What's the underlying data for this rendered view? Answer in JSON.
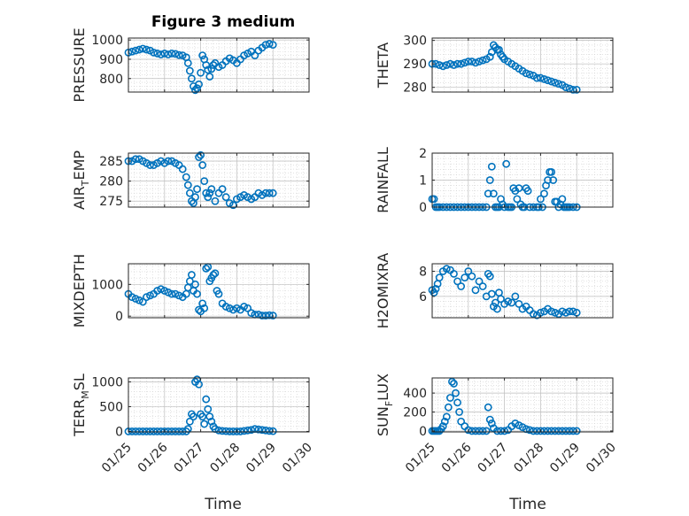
{
  "figure": {
    "title": "Figure 3 medium",
    "xlabel": "Time",
    "x_tick_labels": [
      "01/25",
      "01/26",
      "01/27",
      "01/28",
      "01/29",
      "01/30"
    ],
    "marker_color": "#0072BD"
  },
  "panels": [
    {
      "key": "pressure",
      "ylabel_main": "PRESSURE",
      "ylabel_sub": "",
      "ylabel_tail": "",
      "yticks": [
        {
          "value": 800,
          "label": "800"
        },
        {
          "value": 900,
          "label": "900"
        },
        {
          "value": 1000,
          "label": "1000"
        }
      ]
    },
    {
      "key": "theta",
      "ylabel_main": "THETA",
      "ylabel_sub": "",
      "ylabel_tail": "",
      "yticks": [
        {
          "value": 280,
          "label": "280"
        },
        {
          "value": 290,
          "label": "290"
        },
        {
          "value": 300,
          "label": "300"
        }
      ]
    },
    {
      "key": "air_temp",
      "ylabel_main": "AIR",
      "ylabel_sub": "T",
      "ylabel_tail": "EMP",
      "yticks": [
        {
          "value": 275,
          "label": "275"
        },
        {
          "value": 280,
          "label": "280"
        },
        {
          "value": 285,
          "label": "285"
        }
      ]
    },
    {
      "key": "rainfall",
      "ylabel_main": "RAINFALL",
      "ylabel_sub": "",
      "ylabel_tail": "",
      "yticks": [
        {
          "value": 0,
          "label": "0"
        },
        {
          "value": 1,
          "label": "1"
        },
        {
          "value": 2,
          "label": "2"
        }
      ]
    },
    {
      "key": "mixdepth",
      "ylabel_main": "MIXDEPTH",
      "ylabel_sub": "",
      "ylabel_tail": "",
      "yticks": [
        {
          "value": 0,
          "label": "0"
        },
        {
          "value": 1000,
          "label": "1000"
        }
      ]
    },
    {
      "key": "h2omixra",
      "ylabel_main": "H2OMIXRA",
      "ylabel_sub": "",
      "ylabel_tail": "",
      "yticks": [
        {
          "value": 6,
          "label": "6"
        },
        {
          "value": 8,
          "label": "8"
        }
      ]
    },
    {
      "key": "terr_msl",
      "ylabel_main": "TERR",
      "ylabel_sub": "M",
      "ylabel_tail": "SL",
      "yticks": [
        {
          "value": 0,
          "label": "0"
        },
        {
          "value": 500,
          "label": "500"
        },
        {
          "value": 1000,
          "label": "1000"
        }
      ]
    },
    {
      "key": "sun_flux",
      "ylabel_main": "SUN",
      "ylabel_sub": "F",
      "ylabel_tail": "LUX",
      "yticks": [
        {
          "value": 0,
          "label": "0"
        },
        {
          "value": 200,
          "label": "200"
        },
        {
          "value": 400,
          "label": "400"
        }
      ]
    }
  ],
  "chart_data": [
    {
      "type": "scatter",
      "title": "Figure 3 medium",
      "xlabel": "",
      "ylabel": "PRESSURE",
      "xlim": [
        0,
        5
      ],
      "ylim": [
        730,
        1010
      ],
      "grid": true,
      "minor_grid": true,
      "x": [
        0.0,
        0.1,
        0.2,
        0.3,
        0.4,
        0.5,
        0.6,
        0.7,
        0.8,
        0.9,
        1.0,
        1.1,
        1.2,
        1.3,
        1.4,
        1.5,
        1.6,
        1.65,
        1.7,
        1.75,
        1.8,
        1.85,
        1.9,
        1.95,
        2.0,
        2.05,
        2.1,
        2.15,
        2.2,
        2.25,
        2.3,
        2.35,
        2.4,
        2.5,
        2.6,
        2.7,
        2.8,
        2.9,
        3.0,
        3.1,
        3.2,
        3.3,
        3.4,
        3.5,
        3.6,
        3.7,
        3.8,
        3.9,
        4.0
      ],
      "y": [
        935,
        940,
        945,
        950,
        955,
        950,
        945,
        935,
        930,
        925,
        930,
        925,
        930,
        928,
        922,
        920,
        910,
        880,
        840,
        800,
        760,
        740,
        750,
        770,
        830,
        920,
        900,
        870,
        845,
        810,
        850,
        870,
        880,
        860,
        870,
        890,
        905,
        895,
        880,
        900,
        920,
        930,
        940,
        920,
        945,
        960,
        975,
        980,
        975
      ]
    },
    {
      "type": "scatter",
      "title": "",
      "xlabel": "",
      "ylabel": "THETA",
      "xlim": [
        0,
        5
      ],
      "ylim": [
        278,
        301
      ],
      "grid": true,
      "minor_grid": true,
      "x": [
        0.0,
        0.1,
        0.2,
        0.3,
        0.4,
        0.5,
        0.6,
        0.7,
        0.8,
        0.9,
        1.0,
        1.1,
        1.2,
        1.3,
        1.4,
        1.5,
        1.6,
        1.65,
        1.7,
        1.75,
        1.8,
        1.85,
        1.9,
        1.95,
        2.0,
        2.1,
        2.2,
        2.3,
        2.4,
        2.5,
        2.6,
        2.7,
        2.8,
        2.9,
        3.0,
        3.1,
        3.2,
        3.3,
        3.4,
        3.5,
        3.6,
        3.7,
        3.8,
        3.9,
        4.0
      ],
      "y": [
        290,
        290,
        289.5,
        289,
        289.5,
        290,
        289.5,
        290,
        290,
        290.5,
        291,
        291,
        290.5,
        291,
        291.5,
        292,
        293,
        295,
        298,
        297,
        296,
        296,
        294,
        293,
        292,
        291,
        290,
        289,
        288,
        287,
        286,
        285.5,
        285,
        284,
        284,
        283.5,
        283,
        282.5,
        282,
        281.5,
        281,
        280,
        279.5,
        279,
        279
      ]
    },
    {
      "type": "scatter",
      "title": "",
      "xlabel": "",
      "ylabel": "AIR_TEMP",
      "xlim": [
        0,
        5
      ],
      "ylim": [
        273.5,
        287
      ],
      "grid": true,
      "minor_grid": true,
      "x": [
        0.0,
        0.1,
        0.2,
        0.3,
        0.4,
        0.5,
        0.6,
        0.7,
        0.8,
        0.9,
        1.0,
        1.1,
        1.2,
        1.3,
        1.4,
        1.5,
        1.6,
        1.65,
        1.7,
        1.75,
        1.8,
        1.85,
        1.9,
        1.95,
        2.0,
        2.05,
        2.1,
        2.15,
        2.2,
        2.25,
        2.3,
        2.4,
        2.5,
        2.6,
        2.7,
        2.8,
        2.9,
        3.0,
        3.1,
        3.2,
        3.3,
        3.4,
        3.5,
        3.6,
        3.7,
        3.8,
        3.9,
        4.0
      ],
      "y": [
        285,
        285,
        285.5,
        285.5,
        285,
        284.5,
        284,
        284,
        284.5,
        285,
        284.5,
        285,
        285,
        284.5,
        284,
        283,
        281,
        279,
        277,
        275,
        274.5,
        276,
        278,
        286,
        286.5,
        284,
        280,
        277,
        276,
        277,
        278,
        275,
        277,
        278,
        276,
        274.5,
        274,
        275.5,
        276,
        276.5,
        276,
        275.5,
        276,
        277,
        276.5,
        277,
        277,
        277
      ]
    },
    {
      "type": "scatter",
      "title": "",
      "xlabel": "",
      "ylabel": "RAINFALL",
      "xlim": [
        0,
        5
      ],
      "ylim": [
        0,
        2
      ],
      "grid": true,
      "minor_grid": true,
      "x": [
        0.0,
        0.05,
        0.1,
        0.15,
        0.2,
        0.3,
        0.4,
        0.5,
        0.6,
        0.7,
        0.8,
        0.9,
        1.0,
        1.1,
        1.2,
        1.3,
        1.4,
        1.5,
        1.55,
        1.6,
        1.65,
        1.7,
        1.75,
        1.8,
        1.85,
        1.9,
        1.95,
        2.0,
        2.05,
        2.1,
        2.15,
        2.2,
        2.25,
        2.3,
        2.35,
        2.4,
        2.45,
        2.5,
        2.55,
        2.6,
        2.65,
        2.7,
        2.8,
        2.9,
        2.95,
        3.0,
        3.05,
        3.1,
        3.15,
        3.2,
        3.25,
        3.3,
        3.35,
        3.4,
        3.45,
        3.5,
        3.55,
        3.6,
        3.65,
        3.7,
        3.75,
        3.8,
        3.9,
        4.0
      ],
      "y": [
        0.3,
        0.3,
        0,
        0,
        0,
        0,
        0,
        0,
        0,
        0,
        0,
        0,
        0,
        0,
        0,
        0,
        0,
        0,
        0.5,
        1.0,
        1.5,
        0.5,
        0,
        0,
        0,
        0.3,
        0.1,
        0,
        1.6,
        0,
        0,
        0,
        0.7,
        0.6,
        0.3,
        0.7,
        0.1,
        0,
        0,
        0.7,
        0.6,
        0,
        0,
        0,
        0,
        0.3,
        0,
        0.5,
        0.8,
        1.0,
        1.3,
        1.3,
        1.0,
        0.2,
        0.2,
        0,
        0.1,
        0.3,
        0,
        0,
        0,
        0,
        0,
        0
      ]
    },
    {
      "type": "scatter",
      "title": "",
      "xlabel": "",
      "ylabel": "MIXDEPTH",
      "xlim": [
        0,
        5
      ],
      "ylim": [
        -50,
        1650
      ],
      "grid": true,
      "minor_grid": true,
      "x": [
        0.0,
        0.1,
        0.2,
        0.3,
        0.4,
        0.5,
        0.6,
        0.7,
        0.8,
        0.9,
        1.0,
        1.1,
        1.2,
        1.3,
        1.4,
        1.5,
        1.6,
        1.65,
        1.7,
        1.75,
        1.8,
        1.85,
        1.9,
        1.95,
        2.0,
        2.05,
        2.1,
        2.15,
        2.2,
        2.25,
        2.3,
        2.35,
        2.4,
        2.45,
        2.5,
        2.6,
        2.7,
        2.8,
        2.9,
        3.0,
        3.1,
        3.2,
        3.3,
        3.4,
        3.5,
        3.6,
        3.7,
        3.8,
        3.9,
        4.0
      ],
      "y": [
        700,
        600,
        550,
        500,
        450,
        600,
        650,
        700,
        800,
        850,
        800,
        750,
        700,
        700,
        650,
        600,
        700,
        900,
        1100,
        1300,
        800,
        1000,
        700,
        200,
        150,
        400,
        250,
        1500,
        1550,
        1100,
        1200,
        1300,
        1350,
        800,
        700,
        400,
        300,
        250,
        200,
        250,
        200,
        300,
        250,
        100,
        50,
        50,
        20,
        20,
        30,
        20
      ]
    },
    {
      "type": "scatter",
      "title": "",
      "xlabel": "",
      "ylabel": "H2OMIXRA",
      "xlim": [
        0,
        5
      ],
      "ylim": [
        4.3,
        8.6
      ],
      "grid": true,
      "minor_grid": true,
      "x": [
        0.0,
        0.05,
        0.1,
        0.15,
        0.2,
        0.3,
        0.4,
        0.5,
        0.6,
        0.7,
        0.8,
        0.9,
        1.0,
        1.1,
        1.2,
        1.3,
        1.4,
        1.5,
        1.55,
        1.6,
        1.65,
        1.7,
        1.75,
        1.8,
        1.85,
        1.9,
        2.0,
        2.1,
        2.2,
        2.3,
        2.4,
        2.5,
        2.6,
        2.7,
        2.8,
        2.9,
        3.0,
        3.1,
        3.2,
        3.3,
        3.4,
        3.5,
        3.6,
        3.7,
        3.8,
        3.9,
        4.0
      ],
      "y": [
        6.5,
        6.3,
        6.6,
        7.0,
        7.5,
        8.0,
        8.2,
        8.1,
        7.8,
        7.2,
        6.8,
        7.5,
        8.0,
        7.6,
        6.5,
        7.2,
        6.8,
        6.0,
        7.8,
        7.6,
        6.2,
        5.2,
        5.5,
        5.0,
        6.3,
        5.8,
        5.4,
        5.6,
        5.5,
        6.0,
        5.4,
        5.0,
        5.2,
        4.9,
        4.6,
        4.5,
        4.7,
        4.8,
        5.0,
        4.8,
        4.7,
        4.6,
        4.8,
        4.7,
        4.8,
        4.8,
        4.7
      ]
    },
    {
      "type": "scatter",
      "title": "",
      "xlabel": "",
      "ylabel": "TERR_MSL",
      "xlim": [
        0,
        5
      ],
      "ylim": [
        -10,
        1080
      ],
      "grid": true,
      "minor_grid": true,
      "x": [
        0.0,
        0.1,
        0.2,
        0.3,
        0.4,
        0.5,
        0.6,
        0.7,
        0.8,
        0.9,
        1.0,
        1.1,
        1.2,
        1.3,
        1.4,
        1.5,
        1.6,
        1.65,
        1.7,
        1.75,
        1.8,
        1.85,
        1.9,
        1.95,
        2.0,
        2.05,
        2.1,
        2.15,
        2.2,
        2.25,
        2.3,
        2.35,
        2.4,
        2.5,
        2.6,
        2.7,
        2.8,
        2.9,
        3.0,
        3.1,
        3.2,
        3.3,
        3.4,
        3.5,
        3.6,
        3.7,
        3.8,
        3.9,
        4.0
      ],
      "y": [
        0,
        0,
        0,
        0,
        0,
        0,
        0,
        0,
        0,
        0,
        0,
        0,
        0,
        0,
        0,
        0,
        0,
        50,
        200,
        350,
        300,
        1000,
        1050,
        950,
        350,
        300,
        150,
        650,
        450,
        300,
        200,
        100,
        50,
        20,
        10,
        5,
        0,
        0,
        0,
        0,
        10,
        20,
        30,
        50,
        40,
        30,
        20,
        10,
        5
      ]
    },
    {
      "type": "scatter",
      "title": "",
      "xlabel": "",
      "ylabel": "SUN_FLUX",
      "xlim": [
        0,
        5
      ],
      "ylim": [
        -10,
        560
      ],
      "grid": true,
      "minor_grid": true,
      "x": [
        0.0,
        0.05,
        0.1,
        0.15,
        0.2,
        0.25,
        0.3,
        0.35,
        0.4,
        0.45,
        0.5,
        0.55,
        0.6,
        0.65,
        0.7,
        0.75,
        0.8,
        0.9,
        1.0,
        1.1,
        1.2,
        1.3,
        1.4,
        1.5,
        1.55,
        1.6,
        1.65,
        1.7,
        1.8,
        1.9,
        2.0,
        2.1,
        2.2,
        2.3,
        2.4,
        2.5,
        2.6,
        2.7,
        2.8,
        2.9,
        3.0,
        3.1,
        3.2,
        3.3,
        3.4,
        3.5,
        3.6,
        3.7,
        3.8,
        3.9,
        4.0
      ],
      "y": [
        0,
        0,
        0,
        0,
        0,
        20,
        50,
        100,
        150,
        250,
        350,
        520,
        500,
        400,
        300,
        200,
        100,
        50,
        10,
        0,
        0,
        0,
        0,
        0,
        250,
        120,
        80,
        30,
        0,
        0,
        0,
        10,
        50,
        80,
        60,
        40,
        20,
        10,
        0,
        0,
        0,
        0,
        0,
        0,
        0,
        0,
        0,
        0,
        0,
        0,
        0
      ]
    }
  ]
}
